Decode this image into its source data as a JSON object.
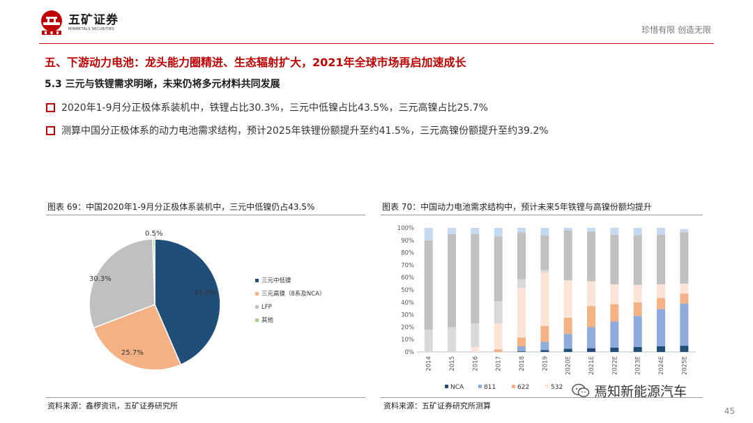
{
  "header": {
    "logo_cn": "五矿证券",
    "logo_en": "MINMETALS SECURITIES",
    "slogan": "珍惜有限  创造无限"
  },
  "headline": "五、下游动力电池：龙头能力圈精进、生态辐射扩大，2021年全球市场再启加速成长",
  "subhead": "5.3 三元与铁锂需求明晰，未来仍将多元材料共同发展",
  "bullets": [
    "2020年1-9月分正极体系装机中，铁锂占比30.3%，三元中低镍占比43.5%，三元高镍占比25.7%",
    "测算中国分正极体系的动力电池需求结构，预计2025年铁锂份额提升至约41.5%，三元高镍份额提升至约39.2%"
  ],
  "figure1": {
    "caption": "图表 69：中国2020年1-9月分正极体系装机中，三元中低镍仍占43.5%",
    "source": "资料来源：鑫椤资讯，五矿证券研究所"
  },
  "figure2": {
    "caption": "图表 70：中国动力电池需求结构中，预计未来5年铁锂与高镍份额均提升",
    "source": "资料来源：五矿证券研究所测算"
  },
  "watermark": "焉知新能源汽车",
  "page_number": "45",
  "colors": {
    "brand_red": "#c00000",
    "nca": "#1f4e79",
    "s811": "#8faadc",
    "s622": "#f4b183",
    "s532": "#fce4d6",
    "lfp": "#c0c0c0",
    "lfp_light": "#d9d9d9",
    "other": "#c5d9f1"
  },
  "chart_data": [
    {
      "type": "pie",
      "labels": [
        "三元中低镍",
        "三元高镍（8系及NCA）",
        "LFP",
        "其他"
      ],
      "values": [
        43.5,
        25.7,
        30.3,
        0.5
      ],
      "data_labels": [
        "43.5%",
        "25.7%",
        "30.3%",
        "0.5%"
      ],
      "colors": [
        "#1f4e79",
        "#f4b183",
        "#c0c0c0",
        "#a9d08e"
      ],
      "legend_position": "right"
    },
    {
      "type": "bar",
      "stacked": true,
      "categories": [
        "2014",
        "2015",
        "2016",
        "2017",
        "2018",
        "2019",
        "2020E",
        "2021E",
        "2022E",
        "2023E",
        "2024E",
        "2025E"
      ],
      "y_ticks": [
        "0%",
        "10%",
        "20%",
        "30%",
        "40%",
        "50%",
        "60%",
        "70%",
        "80%",
        "90%",
        "100%"
      ],
      "ylim": [
        0,
        100
      ],
      "legend_position": "bottom",
      "series": [
        {
          "name": "NCA",
          "color": "#1f4e79",
          "values": [
            0,
            0,
            0,
            0,
            0.5,
            1.5,
            2.5,
            3,
            3.5,
            4,
            4.5,
            5
          ]
        },
        {
          "name": "811",
          "color": "#8faadc",
          "values": [
            0,
            0,
            0,
            0,
            4,
            6.5,
            12,
            17,
            21,
            25,
            30,
            34
          ]
        },
        {
          "name": "622",
          "color": "#f4b183",
          "values": [
            0,
            0,
            0,
            2,
            7,
            13,
            13,
            17,
            14,
            11,
            9,
            8
          ]
        },
        {
          "name": "532",
          "color": "#fce4d6",
          "values": [
            0,
            0,
            4,
            21,
            40,
            43,
            30,
            20,
            16,
            14,
            11,
            8
          ]
        },
        {
          "name": "",
          "color": "#d9d9d9",
          "values": [
            18,
            20,
            19,
            18,
            7,
            2,
            0.5,
            0,
            0,
            0,
            0,
            0
          ]
        },
        {
          "name": "",
          "color": "#c0c0c0",
          "values": [
            72,
            75,
            72,
            52,
            38,
            28,
            40,
            40,
            40,
            40,
            40,
            41.5
          ]
        },
        {
          "name": "",
          "color": "#c5d9f1",
          "values": [
            10,
            5,
            5,
            7,
            3.5,
            6,
            2,
            3,
            5.5,
            6,
            5.5,
            2.5
          ]
        }
      ]
    }
  ]
}
